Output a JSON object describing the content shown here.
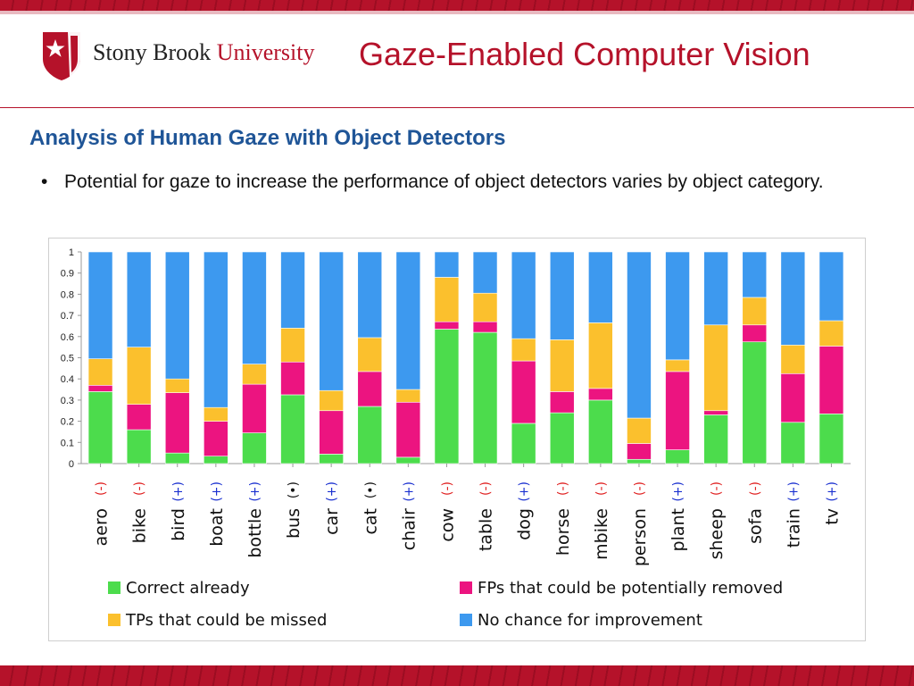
{
  "header": {
    "logo_name": "Stony Brook",
    "logo_name_2": "University",
    "title": "Gaze-Enabled Computer Vision"
  },
  "section": {
    "heading": "Analysis of Human Gaze with Object Detectors",
    "bullet": "Potential for gaze to increase the performance of object detectors varies by object category."
  },
  "colors": {
    "brand_red": "#b5122a",
    "heading_blue": "#1f5597",
    "correct": "#4cdc4c",
    "fp": "#ec1480",
    "tp": "#fbc02d",
    "no_chance": "#3d99ef",
    "minus_marker": "#e02020",
    "plus_marker": "#1a30d0",
    "neutral_marker": "#111111"
  },
  "chart_data": {
    "type": "bar",
    "stacked": true,
    "ylim": [
      0,
      1
    ],
    "yticks": [
      "0",
      "0.1",
      "0.2",
      "0.3",
      "0.4",
      "0.5",
      "0.6",
      "0.7",
      "0.8",
      "0.9",
      "1"
    ],
    "categories": [
      "aero",
      "bike",
      "bird",
      "boat",
      "bottle",
      "bus",
      "car",
      "cat",
      "chair",
      "cow",
      "table",
      "dog",
      "horse",
      "mbike",
      "person",
      "plant",
      "sheep",
      "sofa",
      "train",
      "tv"
    ],
    "markers": [
      "(-)",
      "(-)",
      "(+)",
      "(+)",
      "(+)",
      "(•)",
      "(+)",
      "(•)",
      "(+)",
      "(-)",
      "(-)",
      "(+)",
      "(-)",
      "(-)",
      "(-)",
      "(+)",
      "(-)",
      "(-)",
      "(+)",
      "(+)"
    ],
    "series": [
      {
        "name": "Correct already",
        "values": [
          0.34,
          0.16,
          0.05,
          0.035,
          0.145,
          0.325,
          0.045,
          0.27,
          0.03,
          0.635,
          0.62,
          0.19,
          0.24,
          0.3,
          0.02,
          0.065,
          0.23,
          0.575,
          0.195,
          0.235
        ]
      },
      {
        "name": "FPs that could be potentially removed",
        "values": [
          0.03,
          0.12,
          0.285,
          0.165,
          0.23,
          0.155,
          0.205,
          0.165,
          0.26,
          0.035,
          0.05,
          0.295,
          0.1,
          0.055,
          0.075,
          0.37,
          0.02,
          0.08,
          0.23,
          0.32
        ]
      },
      {
        "name": "TPs that could be missed",
        "values": [
          0.125,
          0.27,
          0.065,
          0.065,
          0.095,
          0.16,
          0.095,
          0.16,
          0.06,
          0.21,
          0.135,
          0.105,
          0.245,
          0.31,
          0.12,
          0.055,
          0.405,
          0.13,
          0.135,
          0.12
        ]
      },
      {
        "name": "No chance for improvement",
        "values": [
          0.505,
          0.45,
          0.6,
          0.735,
          0.53,
          0.36,
          0.655,
          0.405,
          0.65,
          0.12,
          0.195,
          0.41,
          0.415,
          0.335,
          0.785,
          0.51,
          0.345,
          0.215,
          0.44,
          0.325
        ]
      }
    ],
    "legend": [
      {
        "label": "Correct already",
        "color": "#4cdc4c"
      },
      {
        "label": "FPs that could be potentially removed",
        "color": "#ec1480"
      },
      {
        "label": "TPs that could be missed",
        "color": "#fbc02d"
      },
      {
        "label": "No chance for improvement",
        "color": "#3d99ef"
      }
    ],
    "legend_position": "bottom"
  }
}
